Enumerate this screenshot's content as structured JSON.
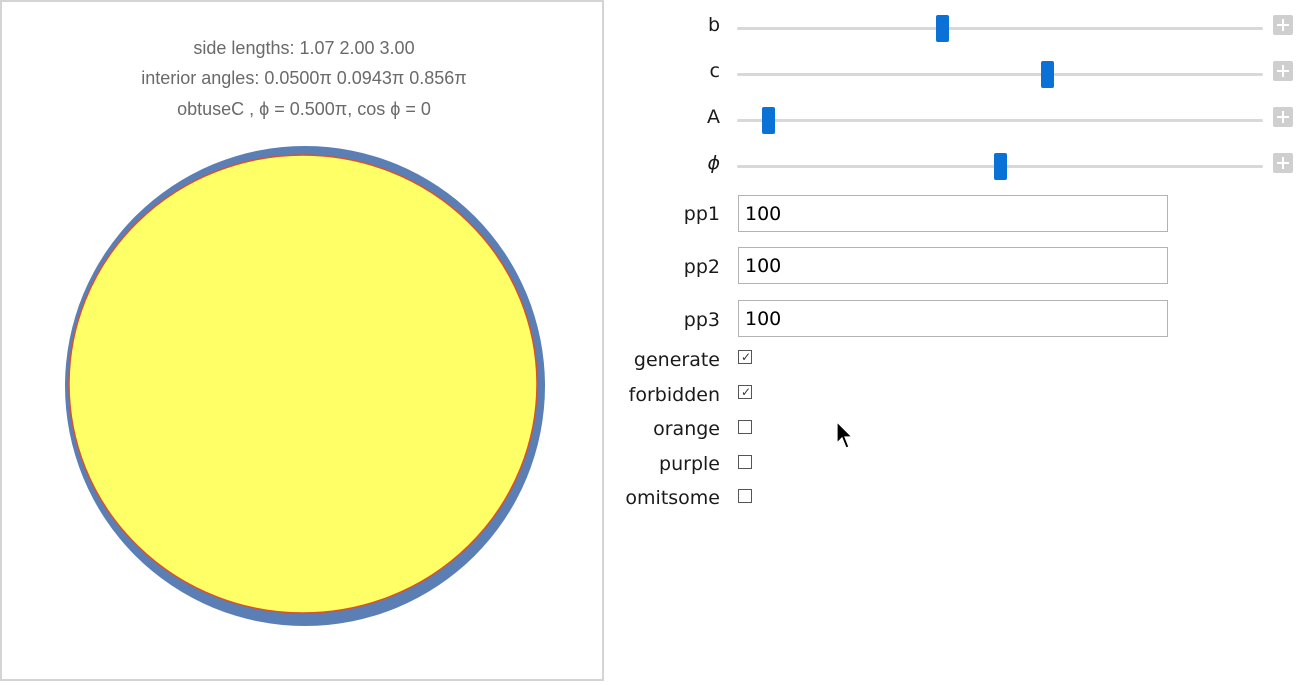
{
  "caption": {
    "line1": "side lengths: 1.07  2.00  3.00",
    "line2": "interior angles: 0.0500π  0.0943π  0.856π",
    "line3": "obtuseC ,   ϕ = 0.500π,  cos ϕ = 0"
  },
  "sliders": [
    {
      "label": "b",
      "value": 0.39
    },
    {
      "label": "c",
      "value": 0.59
    },
    {
      "label": "A",
      "value": 0.06
    },
    {
      "label": "ϕ",
      "value": 0.5
    }
  ],
  "inputs": [
    {
      "label": "pp1",
      "value": "100"
    },
    {
      "label": "pp2",
      "value": "100"
    },
    {
      "label": "pp3",
      "value": "100"
    }
  ],
  "checkboxes": [
    {
      "label": "generate",
      "checked": true
    },
    {
      "label": "forbidden",
      "checked": true
    },
    {
      "label": "orange",
      "checked": false
    },
    {
      "label": "purple",
      "checked": false
    },
    {
      "label": "omitsome",
      "checked": false
    }
  ],
  "colors": {
    "disk_fill": "#ffff66",
    "disk_ring": "#5b7fb5",
    "disk_edge": "#d9532a",
    "slider_thumb": "#0a72d6"
  }
}
